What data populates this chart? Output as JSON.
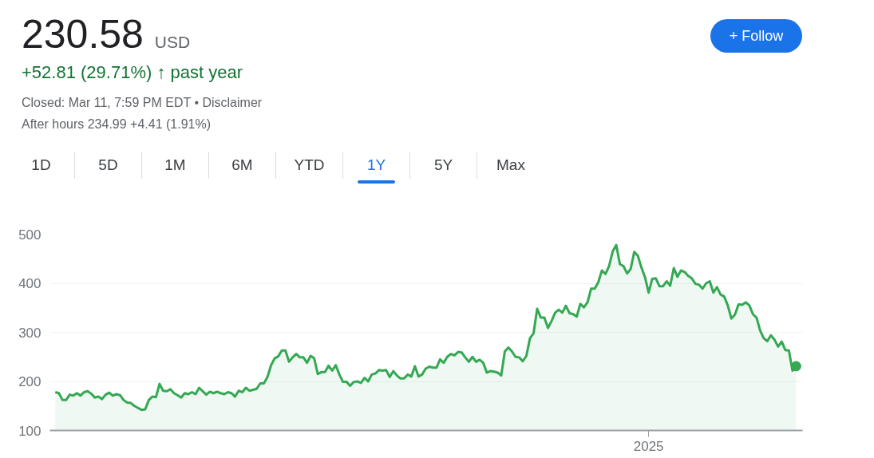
{
  "chart_data": {
    "type": "area",
    "title": "230.58",
    "annotations": [
      "USD",
      "+52.81 (29.71%) ↑ past year",
      "Closed: Mar 11, 7:59 PM EDT • Disclaimer",
      "After hours 234.99 +4.41 (1.91%)",
      "+ Follow",
      "1D",
      "5D",
      "1M",
      "6M",
      "YTD",
      "1Y",
      "5Y",
      "Max"
    ],
    "categories": [
      null,
      null,
      null,
      null,
      null,
      null,
      null,
      null,
      null,
      null,
      null,
      null,
      null,
      null,
      null,
      null,
      null,
      null,
      null,
      null,
      null,
      null,
      null,
      null,
      null,
      null,
      null,
      null,
      null,
      null,
      null,
      null,
      null,
      null,
      null,
      null,
      null,
      null,
      null,
      null,
      null,
      null,
      null,
      null,
      null,
      null,
      null,
      null,
      null,
      null,
      null,
      null,
      null,
      null,
      null,
      null,
      null,
      null,
      null,
      null,
      null,
      null,
      null,
      null,
      null,
      null,
      null,
      null,
      null,
      null,
      null,
      null,
      null,
      null,
      null,
      null,
      null,
      null,
      null,
      null,
      null,
      null,
      null,
      null,
      null,
      null,
      null,
      null,
      null,
      null,
      null,
      null,
      null,
      null,
      null,
      null,
      null,
      null,
      null,
      null,
      null,
      null,
      null,
      null,
      null,
      null,
      null,
      null,
      null,
      null,
      null,
      null,
      null,
      null,
      null,
      null,
      null,
      null,
      null,
      null,
      null,
      null,
      null,
      null,
      null,
      null,
      null,
      null,
      null,
      null,
      null,
      null,
      null,
      null,
      null,
      null,
      null,
      null,
      null,
      null,
      null,
      null,
      null,
      null,
      null,
      null,
      null,
      null,
      null,
      null,
      null,
      null,
      null,
      null,
      null,
      null,
      null,
      null,
      null,
      null,
      null,
      null,
      null,
      null,
      null,
      "2025",
      null,
      null,
      null,
      null,
      null,
      null,
      null,
      null,
      null,
      null,
      null,
      null,
      null,
      null,
      null,
      null,
      null,
      null,
      null,
      null,
      null,
      null,
      null,
      null,
      null,
      null,
      null,
      null,
      null,
      null,
      null,
      null,
      null,
      null,
      null,
      null,
      null,
      null,
      null,
      null,
      null
    ],
    "ylim": [
      100,
      500
    ],
    "yticks": [
      100,
      200,
      300,
      400,
      500
    ],
    "grid": "y",
    "series": [
      {
        "color": "#34a853",
        "values": [
          178,
          176,
          162,
          162,
          173,
          171,
          176,
          171,
          178,
          180,
          175,
          167,
          169,
          164,
          173,
          177,
          171,
          174,
          172,
          162,
          157,
          156,
          150,
          146,
          142,
          143,
          162,
          169,
          168,
          195,
          181,
          180,
          184,
          176,
          172,
          167,
          176,
          174,
          178,
          174,
          187,
          180,
          173,
          179,
          176,
          179,
          176,
          174,
          178,
          176,
          169,
          181,
          178,
          187,
          181,
          183,
          185,
          196,
          196,
          209,
          233,
          247,
          251,
          263,
          263,
          240,
          249,
          256,
          249,
          249,
          238,
          252,
          247,
          215,
          219,
          219,
          232,
          222,
          233,
          214,
          199,
          199,
          191,
          199,
          200,
          197,
          207,
          200,
          214,
          216,
          223,
          222,
          223,
          209,
          221,
          212,
          206,
          206,
          214,
          210,
          231,
          210,
          214,
          226,
          230,
          228,
          228,
          245,
          238,
          250,
          256,
          253,
          260,
          259,
          249,
          240,
          250,
          240,
          244,
          238,
          218,
          221,
          220,
          218,
          212,
          261,
          269,
          261,
          250,
          249,
          241,
          252,
          288,
          298,
          348,
          330,
          330,
          309,
          323,
          340,
          346,
          340,
          354,
          339,
          337,
          332,
          358,
          351,
          361,
          389,
          389,
          402,
          426,
          419,
          435,
          465,
          478,
          439,
          435,
          420,
          429,
          464,
          456,
          432,
          412,
          381,
          409,
          410,
          394,
          394,
          404,
          395,
          431,
          413,
          426,
          423,
          415,
          410,
          399,
          397,
          389,
          400,
          404,
          381,
          392,
          377,
          373,
          355,
          328,
          336,
          357,
          356,
          361,
          355,
          337,
          330,
          304,
          288,
          282,
          294,
          285,
          271,
          281,
          264,
          263,
          222,
          231
        ]
      }
    ]
  }
}
